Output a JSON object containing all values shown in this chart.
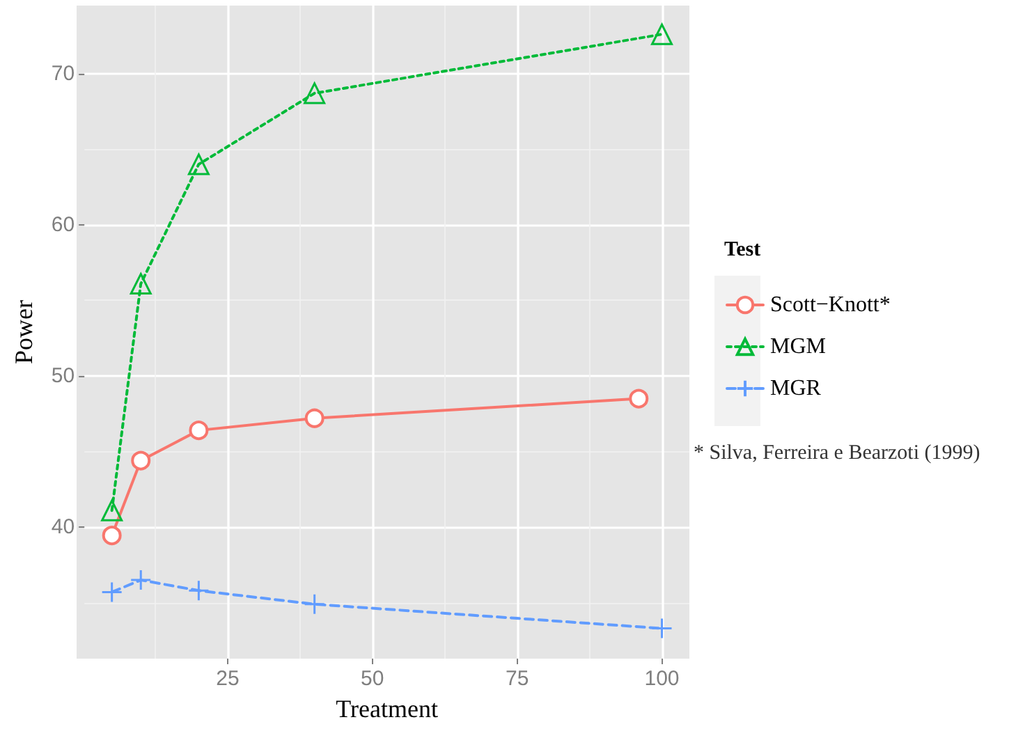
{
  "chart_data": {
    "type": "line",
    "xlabel": "Treatment",
    "ylabel": "Power",
    "legend_title": "Test",
    "annotations": [
      "* Silva, Ferreira e Bearzoti (1999)"
    ],
    "series": [
      {
        "name": "Scott−Knott*",
        "color": "#f8766d",
        "marker": "circle",
        "line_style": "solid",
        "x": [
          5,
          10,
          20,
          40,
          96
        ],
        "values": [
          39.45,
          44.4,
          46.4,
          47.2,
          48.5
        ]
      },
      {
        "name": "MGM",
        "color": "#00ba38",
        "marker": "triangle",
        "line_style": "dotted",
        "x": [
          5,
          10,
          20,
          40,
          100
        ],
        "values": [
          41.1,
          56.1,
          64.0,
          68.7,
          72.6
        ]
      },
      {
        "name": "MGR",
        "color": "#619cff",
        "marker": "cross",
        "line_style": "dashed",
        "x": [
          5,
          10,
          20,
          40,
          100
        ],
        "values": [
          35.7,
          36.5,
          35.8,
          34.9,
          33.3
        ]
      }
    ],
    "xlim": [
      0.25,
      104.75
    ],
    "xticks": [
      25,
      50,
      75,
      100
    ],
    "ylim": [
      31.3,
      74.5
    ],
    "yticks": [
      40,
      50,
      60,
      70
    ],
    "grid": true,
    "legend": "right"
  }
}
